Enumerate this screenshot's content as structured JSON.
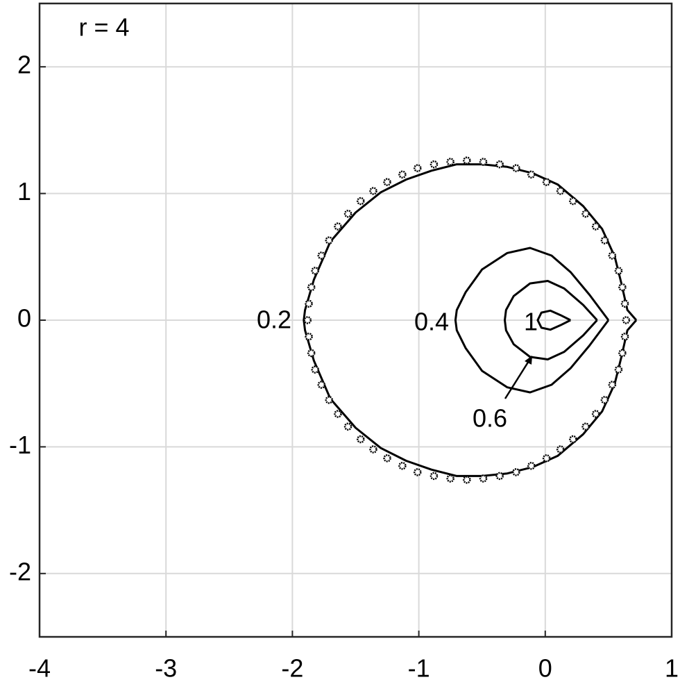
{
  "chart_data": {
    "type": "line",
    "annotation": "r = 4",
    "xlim": [
      -4,
      1
    ],
    "ylim": [
      -2.5,
      2.5
    ],
    "xticks": [
      -4,
      -3,
      -2,
      -1,
      0,
      1
    ],
    "yticks": [
      -2,
      -1,
      0,
      1,
      2
    ],
    "grid": true,
    "series": [
      {
        "name": "0.2",
        "color": "#000000",
        "style": "line",
        "x": [
          0.72,
          0.65,
          0.6,
          0.55,
          0.45,
          0.3,
          0.1,
          -0.1,
          -0.3,
          -0.5,
          -0.7,
          -0.9,
          -1.1,
          -1.3,
          -1.5,
          -1.7,
          -1.83,
          -1.9,
          -1.91,
          -1.9,
          -1.83,
          -1.7,
          -1.5,
          -1.3,
          -1.1,
          -0.9,
          -0.7,
          -0.5,
          -0.3,
          -0.1,
          0.1,
          0.3,
          0.45,
          0.55,
          0.6,
          0.65,
          0.72
        ],
        "values": [
          0,
          0.08,
          0.3,
          0.5,
          0.72,
          0.9,
          1.07,
          1.16,
          1.21,
          1.23,
          1.23,
          1.18,
          1.11,
          1.01,
          0.85,
          0.62,
          0.32,
          0.08,
          0,
          -0.08,
          -0.32,
          -0.62,
          -0.85,
          -1.01,
          -1.11,
          -1.18,
          -1.23,
          -1.23,
          -1.21,
          -1.16,
          -1.07,
          -0.9,
          -0.72,
          -0.5,
          -0.3,
          -0.08,
          0
        ]
      },
      {
        "name": "0.4",
        "color": "#000000",
        "style": "line",
        "x": [
          0.5,
          0.35,
          0.2,
          0.05,
          -0.12,
          -0.3,
          -0.5,
          -0.63,
          -0.7,
          -0.71,
          -0.7,
          -0.63,
          -0.5,
          -0.3,
          -0.12,
          0.05,
          0.2,
          0.35,
          0.5
        ],
        "values": [
          0,
          0.2,
          0.38,
          0.51,
          0.57,
          0.53,
          0.4,
          0.22,
          0.08,
          0,
          -0.08,
          -0.22,
          -0.4,
          -0.53,
          -0.57,
          -0.51,
          -0.38,
          -0.2,
          0
        ]
      },
      {
        "name": "0.6",
        "color": "#000000",
        "style": "line",
        "x": [
          0.41,
          0.3,
          0.15,
          0.02,
          -0.12,
          -0.25,
          -0.31,
          -0.32,
          -0.31,
          -0.25,
          -0.12,
          0.02,
          0.15,
          0.3,
          0.41
        ],
        "values": [
          0,
          0.12,
          0.25,
          0.31,
          0.29,
          0.19,
          0.08,
          0,
          -0.08,
          -0.19,
          -0.29,
          -0.31,
          -0.25,
          -0.12,
          0
        ]
      },
      {
        "name": "1",
        "color": "#000000",
        "style": "line",
        "x": [
          0.2,
          0.12,
          0.04,
          -0.03,
          -0.06,
          -0.03,
          0.04,
          0.12,
          0.2
        ],
        "values": [
          0,
          0.04,
          0.075,
          0.06,
          0,
          -0.06,
          -0.075,
          -0.04,
          0
        ]
      },
      {
        "color": "#000000",
        "style": "markers",
        "x": [
          0.64,
          0.63,
          0.61,
          0.58,
          0.53,
          0.47,
          0.4,
          0.32,
          0.22,
          0.12,
          0.01,
          -0.11,
          -0.23,
          -0.36,
          -0.49,
          -0.62,
          -0.75,
          -0.88,
          -1.01,
          -1.13,
          -1.25,
          -1.36,
          -1.46,
          -1.56,
          -1.64,
          -1.71,
          -1.77,
          -1.82,
          -1.85,
          -1.87,
          -1.88,
          -1.87,
          -1.85,
          -1.82,
          -1.77,
          -1.71,
          -1.64,
          -1.56,
          -1.46,
          -1.36,
          -1.25,
          -1.13,
          -1.01,
          -0.88,
          -0.75,
          -0.62,
          -0.49,
          -0.36,
          -0.23,
          -0.11,
          0.01,
          0.12,
          0.22,
          0.32,
          0.4,
          0.47,
          0.53,
          0.58,
          0.61,
          0.63
        ],
        "values": [
          0,
          0.13,
          0.26,
          0.39,
          0.51,
          0.63,
          0.74,
          0.84,
          0.94,
          1.02,
          1.09,
          1.15,
          1.2,
          1.23,
          1.25,
          1.26,
          1.25,
          1.23,
          1.2,
          1.15,
          1.09,
          1.02,
          0.94,
          0.84,
          0.74,
          0.63,
          0.51,
          0.39,
          0.26,
          0.13,
          0,
          -0.13,
          -0.26,
          -0.39,
          -0.51,
          -0.63,
          -0.74,
          -0.84,
          -0.94,
          -1.02,
          -1.09,
          -1.15,
          -1.2,
          -1.23,
          -1.25,
          -1.26,
          -1.25,
          -1.23,
          -1.2,
          -1.15,
          -1.09,
          -1.02,
          -0.94,
          -0.84,
          -0.74,
          -0.63,
          -0.51,
          -0.39,
          -0.26,
          -0.13
        ]
      }
    ]
  }
}
